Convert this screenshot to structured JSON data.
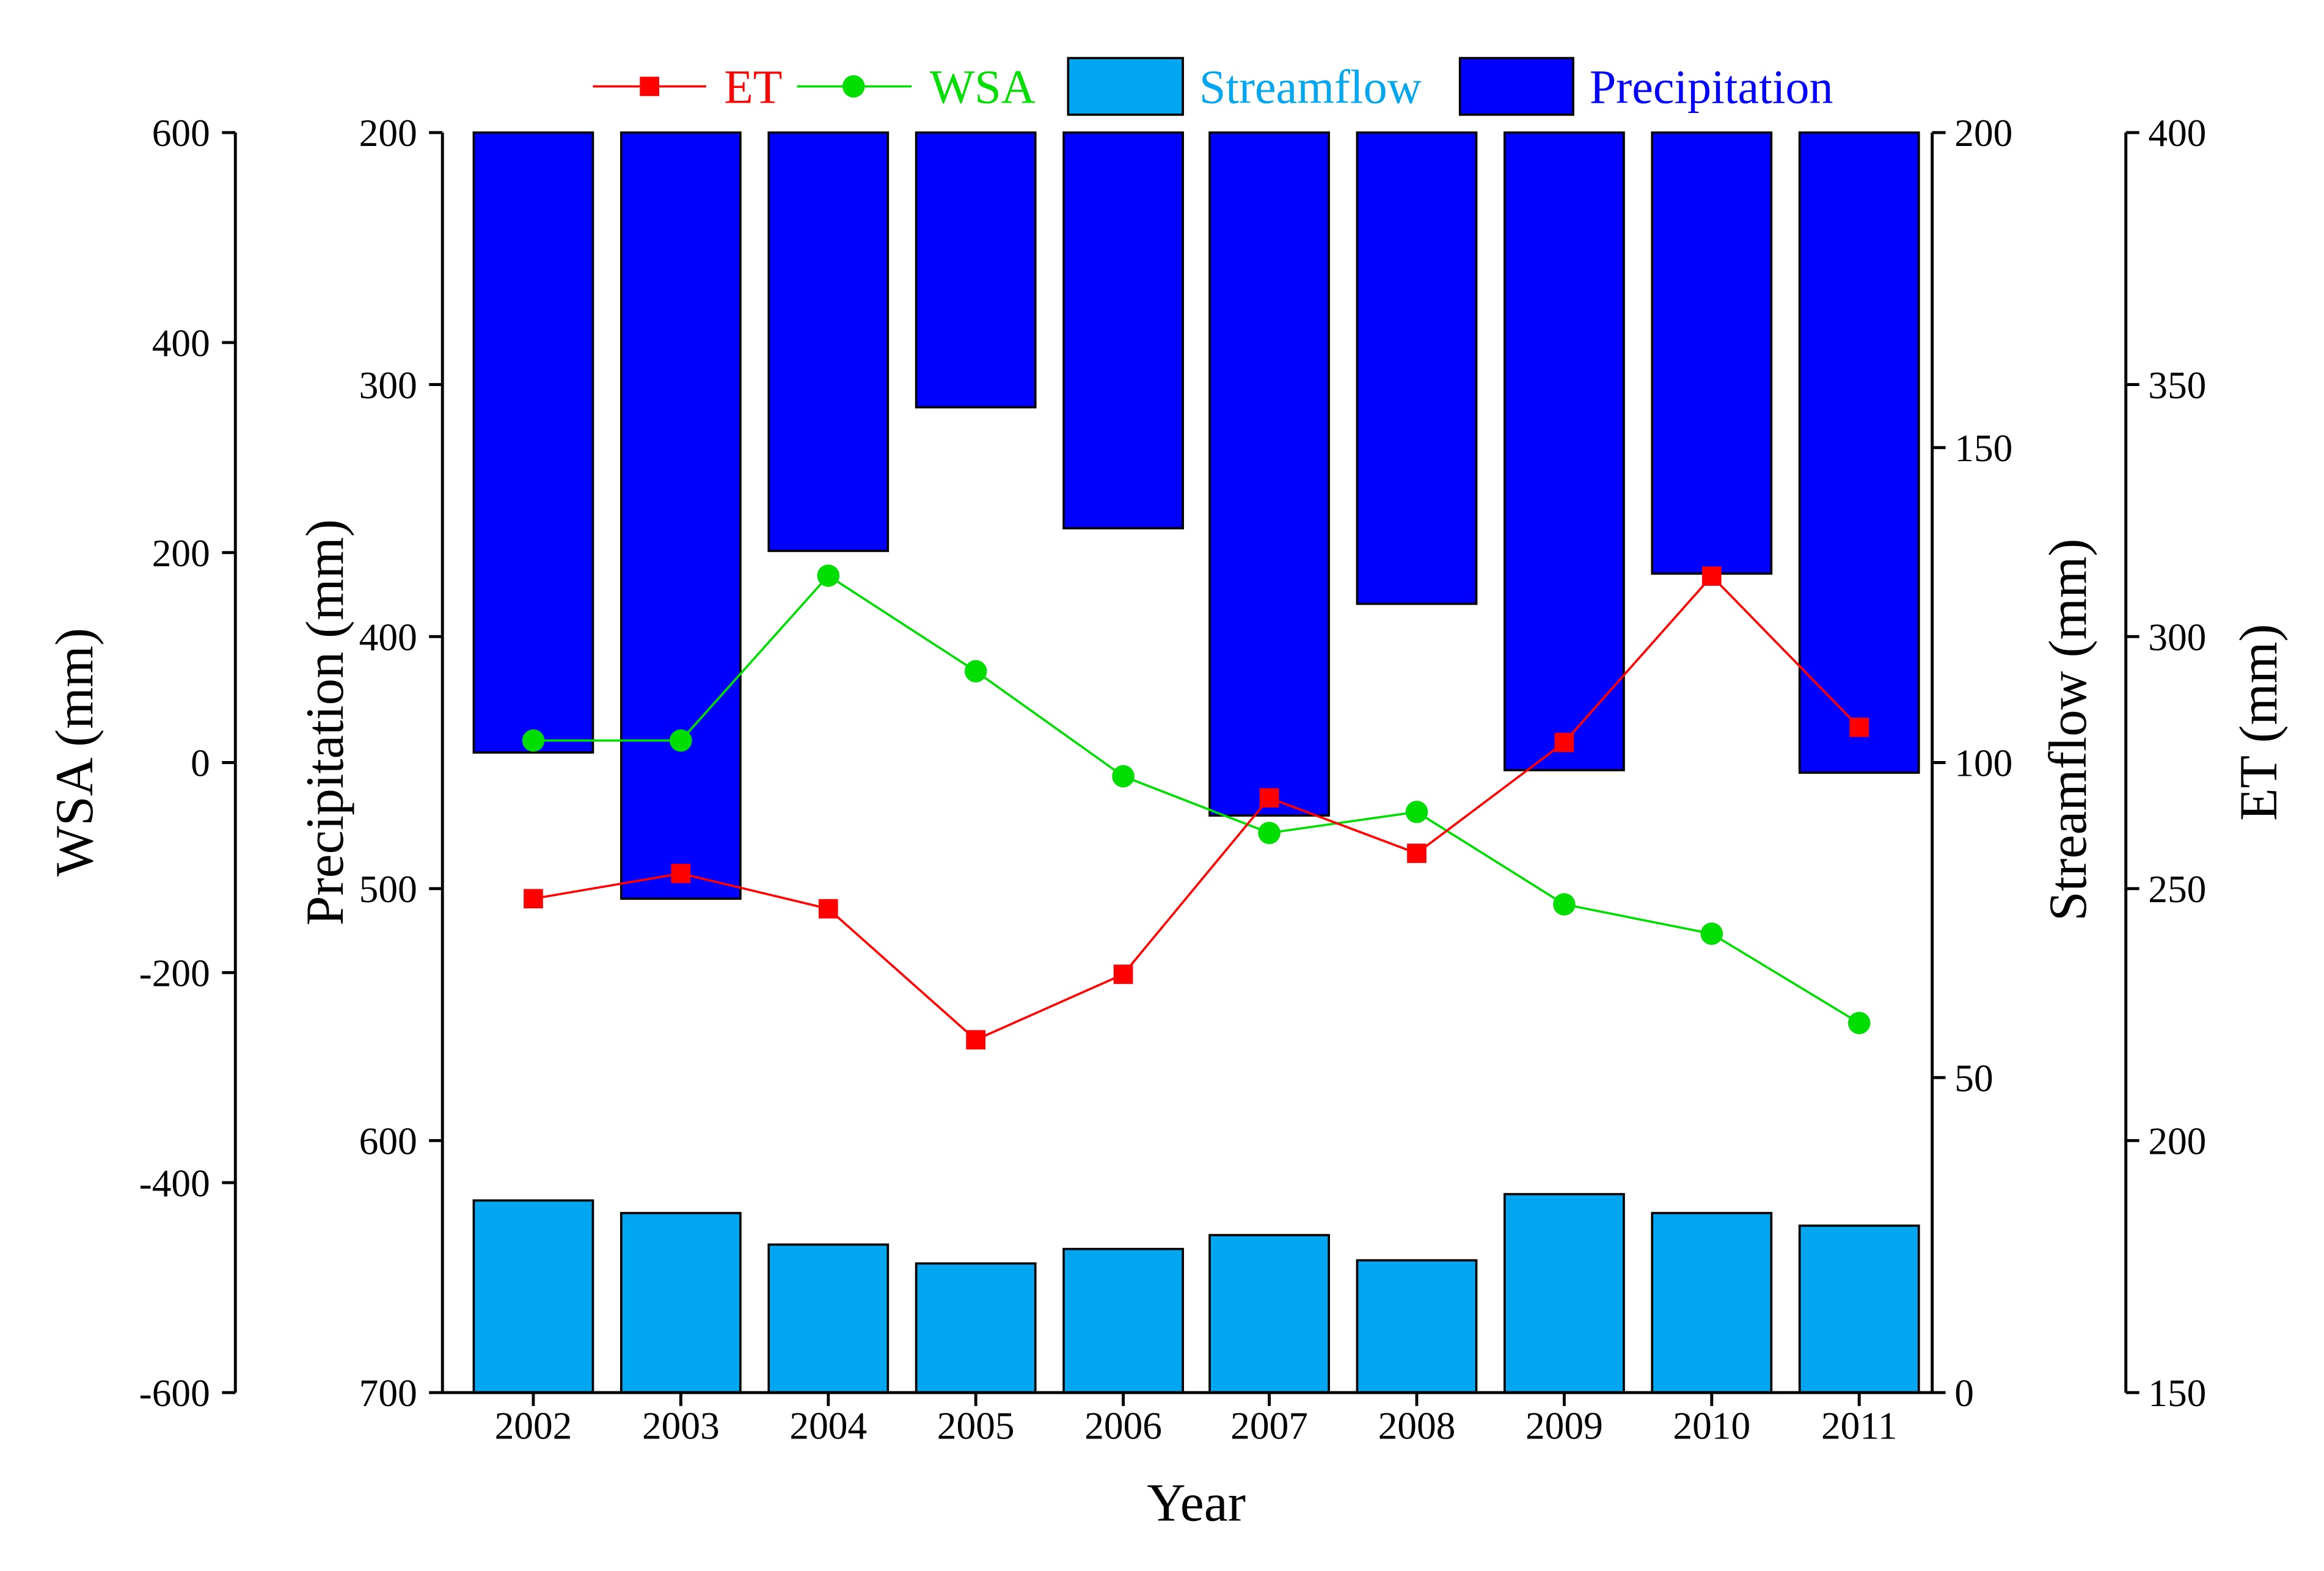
{
  "chart_data": {
    "type": "bar",
    "categories": [
      "2002",
      "2003",
      "2004",
      "2005",
      "2006",
      "2007",
      "2008",
      "2009",
      "2010",
      "2011"
    ],
    "xlabel": "Year",
    "axes": {
      "wsa": {
        "label": "WSA (mm)",
        "range": [
          -600,
          600
        ],
        "ticks": [
          "600",
          "400",
          "200",
          "0",
          "-200",
          "-400",
          "-600"
        ],
        "tick_values": [
          600,
          400,
          200,
          0,
          -200,
          -400,
          -600
        ]
      },
      "precip": {
        "label": "Precipitation (mm)",
        "range": [
          200,
          700
        ],
        "inverted": true,
        "ticks": [
          "200",
          "300",
          "400",
          "500",
          "600",
          "700"
        ],
        "tick_values": [
          200,
          300,
          400,
          500,
          600,
          700
        ]
      },
      "stream": {
        "label": "Streamflow (mm)",
        "range": [
          0,
          200
        ],
        "ticks": [
          "200",
          "150",
          "100",
          "50",
          "0"
        ],
        "tick_values": [
          200,
          150,
          100,
          50,
          0
        ]
      },
      "et": {
        "label": "ET (mm)",
        "range": [
          150,
          400
        ],
        "ticks": [
          "400",
          "350",
          "300",
          "250",
          "200",
          "150"
        ],
        "tick_values": [
          400,
          350,
          300,
          250,
          200,
          150
        ]
      }
    },
    "series": [
      {
        "name": "Precipitation",
        "type": "bar",
        "axis": "precip",
        "color": "#0000ff",
        "values": [
          446,
          504,
          366,
          309,
          357,
          471,
          387,
          453,
          375,
          454
        ]
      },
      {
        "name": "Streamflow",
        "type": "bar",
        "axis": "stream",
        "color": "#00a6f0",
        "values": [
          30.5,
          28.5,
          23.5,
          20.5,
          22.8,
          25.0,
          21.0,
          31.5,
          28.5,
          26.5
        ]
      },
      {
        "name": "ET",
        "type": "line",
        "axis": "et",
        "color": "#ff0000",
        "marker": "square",
        "values": [
          248,
          253,
          246,
          220,
          233,
          268,
          257,
          279,
          312,
          282
        ]
      },
      {
        "name": "WSA",
        "type": "line",
        "axis": "wsa",
        "color": "#00dd00",
        "marker": "circle",
        "values": [
          21,
          21,
          178,
          87,
          -13,
          -67,
          -47,
          -135,
          -163,
          -248
        ]
      }
    ],
    "legend": {
      "position": "top-center",
      "items": [
        {
          "label": "ET",
          "color": "#ff0000"
        },
        {
          "label": "WSA",
          "color": "#00dd00"
        },
        {
          "label": "Streamflow",
          "color": "#00a6f0"
        },
        {
          "label": "Precipitation",
          "color": "#0000ff"
        }
      ]
    }
  }
}
